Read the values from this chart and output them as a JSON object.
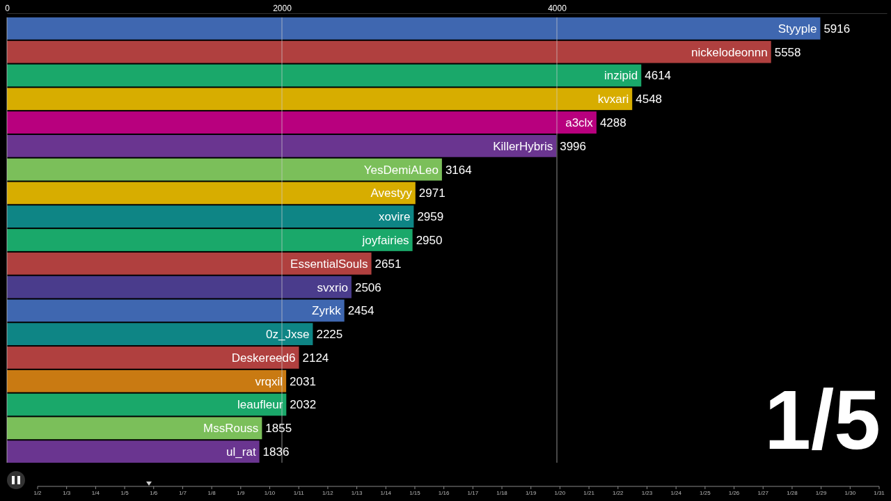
{
  "chart_data": {
    "type": "bar",
    "orientation": "horizontal",
    "categories": [
      "Styyple",
      "nickelodeonnn",
      "inzipid",
      "kvxari",
      "a3clx",
      "KillerHybris",
      "YesDemiALeo",
      "Avestyy",
      "xovire",
      "joyfairies",
      "EssentialSouls",
      "svxrio",
      "Zyrkk",
      "0z_Jxse",
      "Deskereed6",
      "vrqxil",
      "leaufleur",
      "MssRouss",
      "ul_rat"
    ],
    "values": [
      5916,
      5558,
      4614,
      4548,
      4288,
      3996,
      3164,
      2971,
      2959,
      2950,
      2651,
      2506,
      2454,
      2225,
      2124,
      2031,
      2032,
      1855,
      1836
    ],
    "colors": [
      "#3f67b0",
      "#b0403f",
      "#1aa86a",
      "#d7ad00",
      "#b8007e",
      "#6a3590",
      "#7bbf5a",
      "#d7ad00",
      "#0e8585",
      "#1aa86a",
      "#b0403f",
      "#4a3c8c",
      "#3f67b0",
      "#0e8585",
      "#b0403f",
      "#c97a12",
      "#1aa86a",
      "#7bbf5a",
      "#6a3590"
    ],
    "xlim": [
      0,
      6400
    ],
    "xticks": [
      0,
      2000,
      4000
    ],
    "grid": "x",
    "data_labels": true,
    "annotations": [
      "1/5",
      "1/2",
      "1/3",
      "1/4",
      "1/5",
      "1/6",
      "1/7",
      "1/8",
      "1/9",
      "1/10",
      "1/11",
      "1/12",
      "1/13",
      "1/14",
      "1/15",
      "1/16",
      "1/17",
      "1/18",
      "1/19",
      "1/20",
      "1/21",
      "1/22",
      "1/23",
      "1/24",
      "1/25",
      "1/26",
      "1/27",
      "1/28",
      "1/29",
      "1/30",
      "1/31"
    ]
  }
}
